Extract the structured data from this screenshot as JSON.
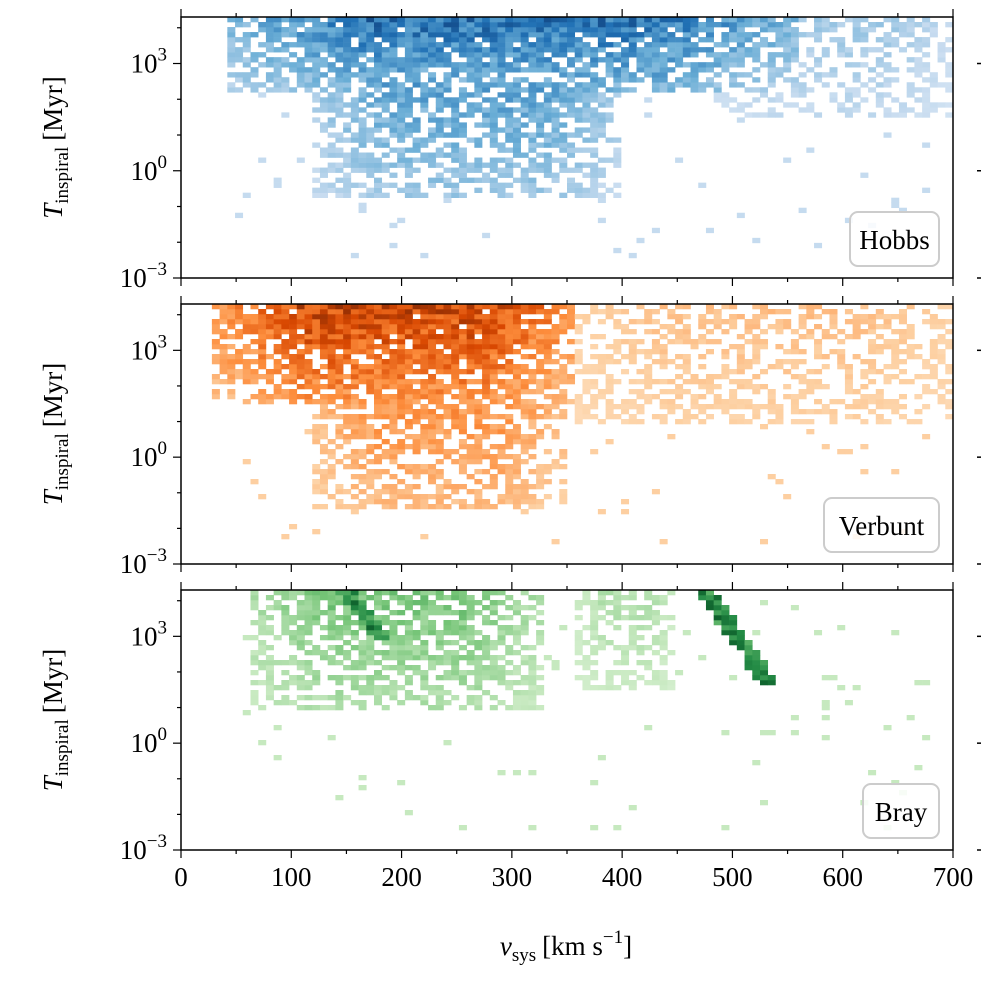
{
  "chart_data": [
    {
      "type": "heatmap",
      "colormap": "blues",
      "xlabel": "v_sys [km s^-1]",
      "ylabel": "T_inspiral [Myr]",
      "yscale": "log",
      "xlim": [
        0,
        700
      ],
      "ylim": [
        0.001,
        20000
      ],
      "yticks": [
        {
          "value": 0.001,
          "label": "10",
          "exp": "−3"
        },
        {
          "value": 1,
          "label": "10",
          "exp": "0"
        },
        {
          "value": 1000,
          "label": "10",
          "exp": "3"
        }
      ],
      "legend": {
        "label": "Hobbs",
        "position": "lower right"
      },
      "density_regions": [
        {
          "v_min": 40,
          "v_max": 560,
          "logT_min": 2.2,
          "logT_max": 4.3,
          "weight": 0.9
        },
        {
          "v_min": 120,
          "v_max": 400,
          "logT_min": -0.8,
          "logT_max": 2.5,
          "weight": 0.6
        },
        {
          "v_min": 480,
          "v_max": 700,
          "logT_min": 1.5,
          "logT_max": 4.3,
          "weight": 0.3
        }
      ]
    },
    {
      "type": "heatmap",
      "colormap": "oranges",
      "xlabel": "",
      "ylabel": "T_inspiral [Myr]",
      "yscale": "log",
      "xlim": [
        0,
        700
      ],
      "ylim": [
        0.001,
        20000
      ],
      "yticks": [
        {
          "value": 0.001,
          "label": "10",
          "exp": "−3"
        },
        {
          "value": 1,
          "label": "10",
          "exp": "0"
        },
        {
          "value": 1000,
          "label": "10",
          "exp": "3"
        }
      ],
      "legend": {
        "label": "Verbunt",
        "position": "lower right"
      },
      "density_regions": [
        {
          "v_min": 30,
          "v_max": 360,
          "logT_min": 1.5,
          "logT_max": 4.3,
          "weight": 0.95
        },
        {
          "v_min": 120,
          "v_max": 350,
          "logT_min": -1.5,
          "logT_max": 1.5,
          "weight": 0.5
        },
        {
          "v_min": 360,
          "v_max": 700,
          "logT_min": 1.0,
          "logT_max": 4.3,
          "weight": 0.25
        }
      ]
    },
    {
      "type": "heatmap",
      "colormap": "greens",
      "xlabel": "v_sys [km s^-1]",
      "ylabel": "T_inspiral [Myr]",
      "yscale": "log",
      "xlim": [
        0,
        700
      ],
      "ylim": [
        0.001,
        20000
      ],
      "xticks": [
        0,
        100,
        200,
        300,
        400,
        500,
        600,
        700
      ],
      "yticks": [
        {
          "value": 0.001,
          "label": "10",
          "exp": "−3"
        },
        {
          "value": 1,
          "label": "10",
          "exp": "0"
        },
        {
          "value": 1000,
          "label": "10",
          "exp": "3"
        }
      ],
      "legend": {
        "label": "Bray",
        "position": "lower right"
      },
      "density_regions": [
        {
          "v_min": 60,
          "v_max": 330,
          "logT_min": 1.0,
          "logT_max": 4.3,
          "weight": 0.5
        },
        {
          "v_min": 360,
          "v_max": 450,
          "logT_min": 1.5,
          "logT_max": 4.3,
          "weight": 0.25
        }
      ],
      "dense_streaks": [
        {
          "v_start": 150,
          "logT_start": 4.3,
          "v_end": 180,
          "logT_end": 3.0
        },
        {
          "v_start": 475,
          "logT_start": 4.3,
          "v_end": 530,
          "logT_end": 1.8
        }
      ]
    }
  ],
  "x_axis": {
    "ticks": [
      "0",
      "100",
      "200",
      "300",
      "400",
      "500",
      "600",
      "700"
    ],
    "label_main": "v",
    "label_sub": "sys",
    "label_units": "[km s",
    "label_sup": "−1",
    "label_close": "]"
  },
  "y_axis": {
    "label_main": "T",
    "label_sub": "inspiral",
    "label_units": "[Myr]"
  },
  "colors": {
    "blues": [
      "#f7fbff",
      "#c6dbef",
      "#6baed6",
      "#2171b5",
      "#08306b"
    ],
    "oranges": [
      "#fff5eb",
      "#fdd0a2",
      "#fd8d3c",
      "#d94801",
      "#7f2704"
    ],
    "greens": [
      "#f7fcf5",
      "#c7e9c0",
      "#74c476",
      "#238b45",
      "#00441b"
    ]
  }
}
